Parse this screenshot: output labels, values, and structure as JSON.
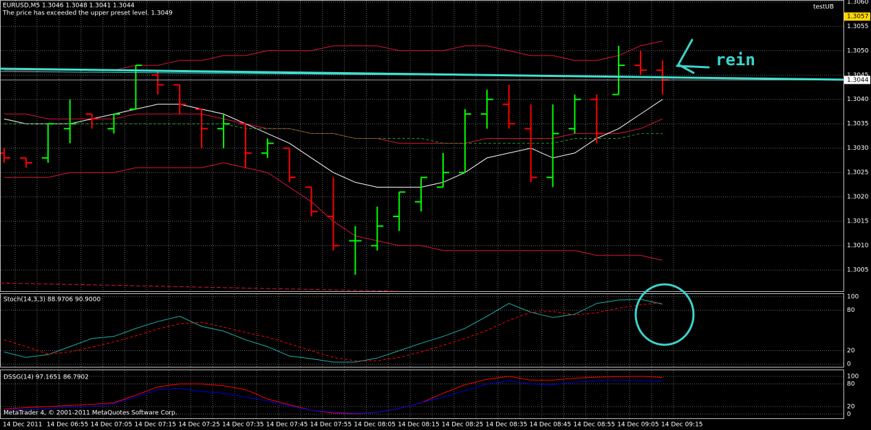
{
  "chart_data": [
    {
      "type": "ohlc",
      "title": "EURUSD,M5  1.3046 1.3048 1.3041 1.3044",
      "subtitle": "The price has exceeded the upper preset level. 1.3049",
      "label": "testUB",
      "annotation": "rein",
      "footer": "MetaTrader 4, © 2001-2011 MetaQuotes Software Corp.",
      "categories": [
        "14 Dec 2011",
        null,
        "14 Dec 06:55",
        null,
        "14 Dec 07:05",
        null,
        "14 Dec 07:15",
        null,
        "14 Dec 07:25",
        null,
        "14 Dec 07:35",
        null,
        "14 Dec 07:45",
        null,
        "14 Dec 07:55",
        null,
        "14 Dec 08:05",
        null,
        "14 Dec 08:15",
        null,
        "14 Dec 08:25",
        null,
        "14 Dec 08:35",
        null,
        "14 Dec 08:45",
        null,
        "14 Dec 08:55",
        null,
        "14 Dec 09:05",
        null,
        "14 Dec 09:15"
      ],
      "open": [
        1.3029,
        1.3028,
        1.3028,
        1.3034,
        1.3037,
        1.3034,
        1.3038,
        1.3045,
        1.3043,
        1.3038,
        1.3034,
        1.3035,
        1.3029,
        1.303,
        1.3022,
        1.3016,
        1.3011,
        1.301,
        1.3016,
        1.3019,
        1.3022,
        1.3025,
        1.3037,
        1.3039,
        1.3034,
        1.3024,
        1.3034,
        1.304,
        1.3041,
        1.3047,
        1.3046
      ],
      "high": [
        1.303,
        1.3028,
        1.3035,
        1.304,
        1.3037,
        1.3037,
        1.3047,
        1.3046,
        1.3043,
        1.3038,
        1.3037,
        1.3035,
        1.3032,
        1.303,
        1.3022,
        1.3024,
        1.3014,
        1.3018,
        1.3021,
        1.3024,
        1.3029,
        1.3038,
        1.3042,
        1.3043,
        1.3039,
        1.3039,
        1.3041,
        1.3041,
        1.3051,
        1.305,
        1.3048
      ],
      "low": [
        1.3027,
        1.3026,
        1.3027,
        1.3031,
        1.3034,
        1.3033,
        1.3038,
        1.3041,
        1.3037,
        1.303,
        1.303,
        1.3026,
        1.3028,
        1.3023,
        1.3016,
        1.3009,
        1.3004,
        1.3009,
        1.3013,
        1.3017,
        1.3022,
        1.3025,
        1.3034,
        1.3034,
        1.3023,
        1.3022,
        1.3033,
        1.3031,
        1.3041,
        1.3045,
        1.3041
      ],
      "close": [
        1.3028,
        1.3027,
        1.3035,
        1.3035,
        1.3036,
        1.3037,
        1.3047,
        1.3043,
        1.3039,
        1.3034,
        1.3035,
        1.3029,
        1.3031,
        1.3024,
        1.3017,
        1.301,
        1.3011,
        1.3014,
        1.3021,
        1.3024,
        1.3025,
        1.3037,
        1.304,
        1.3035,
        1.3024,
        1.3033,
        1.304,
        1.3033,
        1.3047,
        1.3046,
        1.3044
      ],
      "up_color": "#00ff00",
      "down_color": "#ff0000",
      "series": [
        {
          "color": "#dc143c",
          "values": [
            1.3046,
            1.3046,
            1.3046,
            1.3046,
            1.3046,
            1.3046,
            1.3047,
            1.3047,
            1.3048,
            1.3048,
            1.3049,
            1.3049,
            1.305,
            1.305,
            1.305,
            1.3051,
            1.3051,
            1.3051,
            1.305,
            1.305,
            1.305,
            1.3051,
            1.3051,
            1.305,
            1.3049,
            1.3049,
            1.3048,
            1.3048,
            1.3049,
            1.3051,
            1.3052
          ]
        },
        {
          "color": "#dc143c",
          "values": [
            1.3037,
            1.3037,
            1.3036,
            1.3036,
            1.3036,
            1.3036,
            1.3037,
            1.3037,
            1.3037,
            1.3037,
            1.3036,
            1.3035,
            1.3034,
            1.3034,
            1.3033,
            1.3033,
            1.3032,
            1.3032,
            1.3031,
            1.3031,
            1.3031,
            1.3031,
            1.3032,
            1.3032,
            1.3032,
            1.3032,
            1.3033,
            1.3033,
            1.3033,
            1.3034,
            1.3036
          ]
        },
        {
          "color": "#dc143c",
          "values": [
            1.3024,
            1.3024,
            1.3024,
            1.3025,
            1.3025,
            1.3025,
            1.3026,
            1.3026,
            1.3026,
            1.3026,
            1.3027,
            1.3026,
            1.3025,
            1.3022,
            1.3019,
            1.3015,
            1.3012,
            1.3011,
            1.301,
            1.301,
            1.3009,
            1.3009,
            1.3009,
            1.3009,
            1.3009,
            1.3009,
            1.3009,
            1.3008,
            1.3008,
            1.3008,
            1.3007
          ]
        },
        {
          "color": "#ffffff",
          "values": [
            1.3036,
            1.3035,
            1.3035,
            1.3035,
            1.3036,
            1.3037,
            1.3038,
            1.3039,
            1.3039,
            1.3038,
            1.3037,
            1.3035,
            1.3033,
            1.3031,
            1.3028,
            1.3025,
            1.3023,
            1.3022,
            1.3022,
            1.3022,
            1.3023,
            1.3025,
            1.3028,
            1.3029,
            1.303,
            1.3028,
            1.3029,
            1.3032,
            1.3034,
            1.3037,
            1.304
          ]
        },
        {
          "color": "#22a022",
          "dashed": true,
          "values": [
            1.3035,
            1.3035,
            1.3035,
            1.3035,
            1.3035,
            1.3035,
            1.3035,
            1.3035,
            1.3035,
            1.3035,
            1.3035,
            1.3034,
            1.3034,
            1.3034,
            1.3033,
            1.3033,
            1.3032,
            1.3032,
            1.3032,
            1.3032,
            1.3031,
            1.3031,
            1.3031,
            1.3031,
            1.3031,
            1.3031,
            1.3032,
            1.3032,
            1.3032,
            1.3033,
            1.3033
          ]
        }
      ],
      "last_price": 1.3044,
      "alert_level": 1.3057,
      "ylim": [
        1.30005,
        1.30604
      ],
      "yticks": [
        1.3005,
        {
          "value": 1.301,
          "label": "1.3010"
        },
        1.3015,
        {
          "value": 1.302,
          "label": "1.3020"
        },
        1.3025,
        {
          "value": 1.303,
          "label": "1.3030"
        },
        1.3035,
        {
          "value": 1.304,
          "label": "1.3040"
        },
        1.3045,
        {
          "value": 1.305,
          "label": "1.3050"
        },
        1.3055,
        {
          "value": 1.306,
          "label": "1.3060"
        }
      ],
      "grid": true
    },
    {
      "type": "line",
      "title": "Stoch(14,3,3) 88.9706 90.9000",
      "series": [
        {
          "color": "#20b2aa",
          "values": [
            18,
            10,
            14,
            26,
            38,
            41,
            53,
            63,
            71,
            56,
            49,
            36,
            26,
            12,
            8,
            3,
            3,
            9,
            20,
            31,
            41,
            53,
            71,
            90,
            77,
            69,
            74,
            90,
            95,
            96,
            89
          ]
        },
        {
          "color": "#ff0000",
          "dashed": true,
          "values": [
            36,
            26,
            15,
            18,
            25,
            33,
            42,
            52,
            60,
            62,
            55,
            47,
            40,
            30,
            20,
            10,
            5,
            5,
            10,
            18,
            28,
            38,
            50,
            65,
            77,
            78,
            73,
            76,
            83,
            88,
            91
          ]
        }
      ],
      "ylim": [
        -5,
        105
      ],
      "yticks": [
        0,
        20,
        80,
        100
      ],
      "grid": true
    },
    {
      "type": "line",
      "title": "DSSG(14) 97.1651 86.7902",
      "series": [
        {
          "color": "#ff0000",
          "values": [
            14,
            17,
            20,
            23,
            26,
            30,
            50,
            72,
            80,
            80,
            75,
            65,
            40,
            25,
            10,
            3,
            1,
            5,
            15,
            30,
            55,
            78,
            92,
            100,
            90,
            90,
            95,
            98,
            99,
            100,
            97
          ]
        },
        {
          "color": "#0000e0",
          "values": [
            10,
            12,
            15,
            18,
            20,
            28,
            45,
            65,
            68,
            60,
            55,
            45,
            35,
            22,
            10,
            5,
            2,
            5,
            15,
            30,
            45,
            62,
            80,
            88,
            80,
            78,
            85,
            88,
            90,
            88,
            87
          ]
        }
      ],
      "ylim": [
        -13,
        118
      ],
      "yticks": [
        0,
        20,
        80,
        100
      ],
      "grid": true
    }
  ]
}
